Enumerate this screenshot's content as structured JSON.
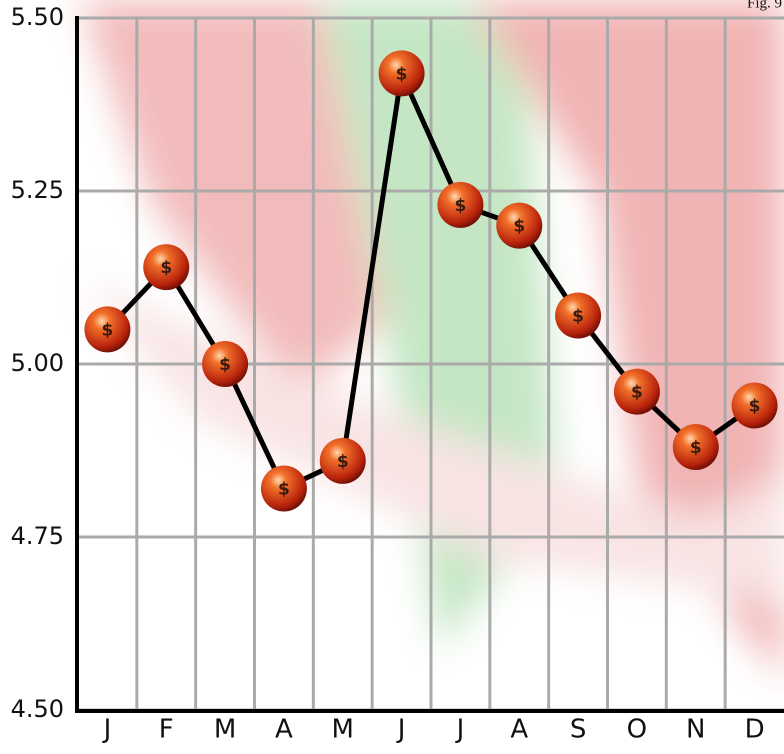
{
  "chart_data": {
    "type": "line",
    "annotation": "Fig. 9",
    "marker_symbol": "$",
    "categories": [
      "J",
      "F",
      "M",
      "A",
      "M",
      "J",
      "J",
      "A",
      "S",
      "O",
      "N",
      "D"
    ],
    "series": [
      {
        "color": "#000000",
        "values": [
          5.05,
          5.14,
          5.0,
          4.82,
          4.86,
          5.42,
          5.23,
          5.2,
          5.07,
          4.96,
          4.88,
          4.94
        ]
      }
    ],
    "ylim": [
      4.5,
      5.5
    ],
    "yticks": [
      {
        "value": 4.5,
        "label": "4.50"
      },
      4.75,
      {
        "value": 5.0,
        "label": "5.00"
      },
      5.25,
      {
        "value": 5.5,
        "label": "5.50"
      }
    ],
    "grid": true
  }
}
